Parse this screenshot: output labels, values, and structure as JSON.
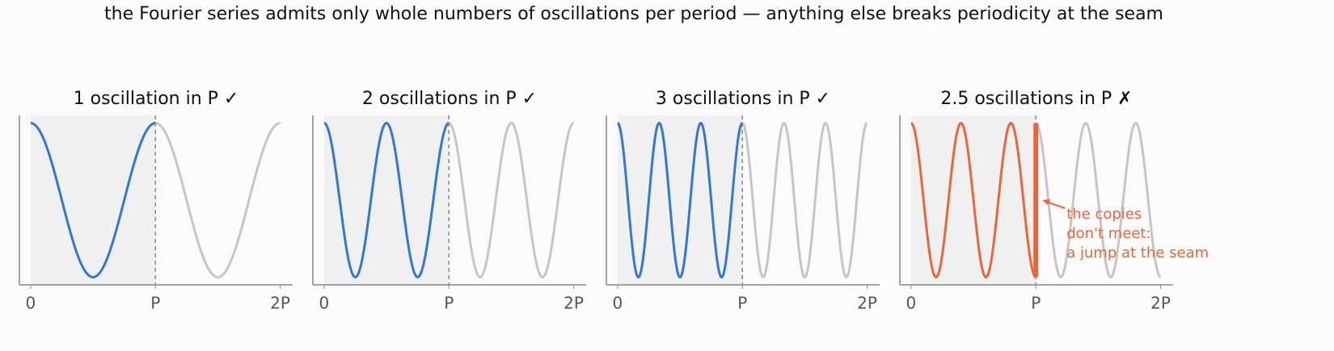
{
  "title": "the Fourier series admits only whole numbers of oscillations per period — anything else breaks periodicity at the seam",
  "chart_data": [
    {
      "type": "line",
      "title": "1 oscillation in P  ✓",
      "cycles": 1,
      "color": "#2f78d4",
      "copy_color": "#c6c6c6",
      "xlim": [
        -0.09,
        2.1
      ],
      "ylim": [
        -1.1,
        1.1
      ],
      "xticks": [
        {
          "value": 0,
          "label": "0"
        },
        {
          "value": 1,
          "label": "P"
        },
        {
          "value": 2,
          "label": "2P"
        }
      ]
    },
    {
      "type": "line",
      "title": "2 oscillations in P  ✓",
      "cycles": 2,
      "color": "#2f78d4",
      "copy_color": "#c6c6c6",
      "xlim": [
        -0.09,
        2.1
      ],
      "ylim": [
        -1.1,
        1.1
      ],
      "xticks": [
        {
          "value": 0,
          "label": "0"
        },
        {
          "value": 1,
          "label": "P"
        },
        {
          "value": 2,
          "label": "2P"
        }
      ]
    },
    {
      "type": "line",
      "title": "3 oscillations in P  ✓",
      "cycles": 3,
      "color": "#2f78d4",
      "copy_color": "#c6c6c6",
      "xlim": [
        -0.09,
        2.1
      ],
      "ylim": [
        -1.1,
        1.1
      ],
      "xticks": [
        {
          "value": 0,
          "label": "0"
        },
        {
          "value": 1,
          "label": "P"
        },
        {
          "value": 2,
          "label": "2P"
        }
      ]
    },
    {
      "type": "line",
      "title": "2.5 oscillations in P  ✗",
      "cycles": 2.5,
      "color": "#e8673a",
      "copy_color": "#c6c6c6",
      "xlim": [
        -0.09,
        2.1
      ],
      "ylim": [
        -1.1,
        1.1
      ],
      "xticks": [
        {
          "value": 0,
          "label": "0"
        },
        {
          "value": 1,
          "label": "P"
        },
        {
          "value": 2,
          "label": "2P"
        }
      ],
      "annotation": [
        "the copies",
        "don't meet:",
        "a jump at the seam"
      ]
    }
  ]
}
